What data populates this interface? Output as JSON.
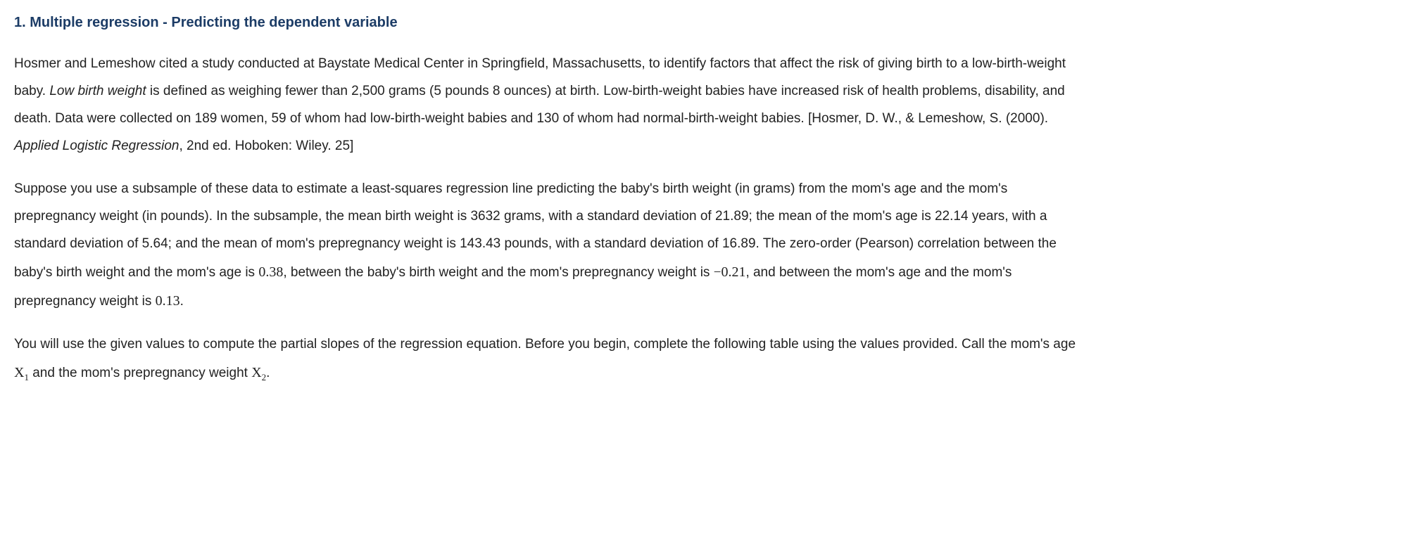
{
  "heading": {
    "number": "1.",
    "title": "Multiple regression - Predicting the dependent variable"
  },
  "paragraphs": {
    "p1": {
      "s1a": "Hosmer and Lemeshow cited a study conducted at Baystate Medical Center in Springfield, Massachusetts, to identify factors that affect the risk of giving birth to a low-birth-weight baby. ",
      "s1_term": "Low birth weight",
      "s1b": " is defined as weighing fewer than 2,500 grams (5 pounds 8 ounces) at birth. Low-birth-weight babies have increased risk of health problems, disability, and death. Data were collected on 189 women, 59 of whom had low-birth-weight babies and 130 of whom had normal-birth-weight babies. [Hosmer, D. W., & Lemeshow, S. (2000). ",
      "s1_booktitle": "Applied Logistic Regression",
      "s1c": ", 2nd ed. Hoboken: Wiley. 25]"
    },
    "p2": {
      "s1": "Suppose you use a subsample of these data to estimate a least-squares regression line predicting the baby's birth weight (in grams) from the mom's age and the mom's prepregnancy weight (in pounds). In the subsample, the mean birth weight is 3632 grams, with a standard deviation of 21.89; the mean of the mom's age is 22.14 years, with a standard deviation of 5.64; and the mean of mom's prepregnancy weight is 143.43 pounds, with a standard deviation of 16.89. The zero-order (Pearson) correlation between the baby's birth weight and the mom's age is ",
      "r_y1": "0.38",
      "s2": ", between the baby's birth weight and the mom's prepregnancy weight is ",
      "r_y2_sign": "−",
      "r_y2": "0.21",
      "s3": ", and between the mom's age and the mom's prepregnancy weight is ",
      "r_12": "0.13",
      "s4": "."
    },
    "p3": {
      "s1": "You will use the given values to compute the partial slopes of the regression equation. Before you begin, complete the following table using the values provided. Call the mom's age ",
      "x1_var": "X",
      "x1_sub": "1",
      "s2": " and the mom's prepregnancy weight ",
      "x2_var": "X",
      "x2_sub": "2",
      "s3": "."
    }
  }
}
